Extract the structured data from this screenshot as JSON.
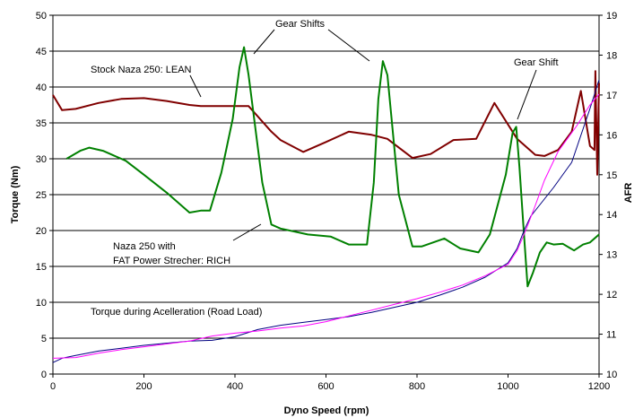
{
  "chart_data": {
    "type": "line",
    "title": "",
    "xlabel": "Dyno Speed (rpm)",
    "ylabel": "Torque (Nm)",
    "y2label": "AFR",
    "xlim": [
      0,
      1200
    ],
    "ylim": [
      0,
      50
    ],
    "y2lim": [
      10,
      19
    ],
    "xticks": [
      0,
      200,
      400,
      600,
      800,
      1000,
      1200
    ],
    "yticks": [
      0,
      5,
      10,
      15,
      20,
      25,
      30,
      35,
      40,
      45,
      50
    ],
    "y2ticks": [
      10,
      11,
      12,
      13,
      14,
      15,
      16,
      17,
      18,
      19
    ],
    "grid": "horizontal",
    "legend": "none",
    "series": [
      {
        "key": "stock_lean",
        "axis": "right",
        "color": "#800000",
        "width": 2,
        "points": [
          [
            0,
            17.0
          ],
          [
            20,
            16.62
          ],
          [
            50,
            16.65
          ],
          [
            100,
            16.8
          ],
          [
            150,
            16.9
          ],
          [
            200,
            16.92
          ],
          [
            250,
            16.85
          ],
          [
            300,
            16.75
          ],
          [
            325,
            16.72
          ],
          [
            375,
            16.72
          ],
          [
            430,
            16.72
          ],
          [
            480,
            16.08
          ],
          [
            500,
            15.87
          ],
          [
            550,
            15.57
          ],
          [
            600,
            15.82
          ],
          [
            650,
            16.08
          ],
          [
            700,
            16.0
          ],
          [
            735,
            15.9
          ],
          [
            790,
            15.42
          ],
          [
            830,
            15.52
          ],
          [
            880,
            15.87
          ],
          [
            930,
            15.9
          ],
          [
            970,
            16.8
          ],
          [
            1020,
            15.9
          ],
          [
            1060,
            15.5
          ],
          [
            1080,
            15.47
          ],
          [
            1110,
            15.62
          ],
          [
            1140,
            16.08
          ],
          [
            1160,
            17.1
          ],
          [
            1180,
            15.72
          ],
          [
            1190,
            15.62
          ],
          [
            1192,
            17.6
          ],
          [
            1196,
            15.0
          ],
          [
            1200,
            17.3
          ]
        ]
      },
      {
        "key": "fat_rich",
        "axis": "right",
        "color": "#008000",
        "width": 2,
        "points": [
          [
            30,
            15.4
          ],
          [
            60,
            15.6
          ],
          [
            80,
            15.68
          ],
          [
            110,
            15.6
          ],
          [
            160,
            15.35
          ],
          [
            200,
            15.0
          ],
          [
            250,
            14.55
          ],
          [
            300,
            14.05
          ],
          [
            325,
            14.1
          ],
          [
            345,
            14.1
          ],
          [
            370,
            15.05
          ],
          [
            395,
            16.4
          ],
          [
            410,
            17.7
          ],
          [
            420,
            18.2
          ],
          [
            430,
            17.5
          ],
          [
            460,
            14.8
          ],
          [
            480,
            13.75
          ],
          [
            500,
            13.65
          ],
          [
            560,
            13.5
          ],
          [
            610,
            13.45
          ],
          [
            650,
            13.25
          ],
          [
            690,
            13.25
          ],
          [
            705,
            14.8
          ],
          [
            715,
            16.9
          ],
          [
            725,
            17.85
          ],
          [
            735,
            17.5
          ],
          [
            760,
            14.5
          ],
          [
            790,
            13.2
          ],
          [
            810,
            13.2
          ],
          [
            860,
            13.4
          ],
          [
            895,
            13.15
          ],
          [
            935,
            13.05
          ],
          [
            960,
            13.5
          ],
          [
            995,
            15.0
          ],
          [
            1010,
            16.05
          ],
          [
            1018,
            16.2
          ],
          [
            1025,
            15.2
          ],
          [
            1035,
            13.5
          ],
          [
            1043,
            12.2
          ],
          [
            1055,
            12.55
          ],
          [
            1070,
            13.05
          ],
          [
            1085,
            13.3
          ],
          [
            1100,
            13.25
          ],
          [
            1120,
            13.27
          ],
          [
            1145,
            13.1
          ],
          [
            1165,
            13.25
          ],
          [
            1180,
            13.3
          ],
          [
            1200,
            13.5
          ]
        ]
      },
      {
        "key": "blue_load",
        "axis": "left",
        "color": "#000080",
        "width": 1,
        "points": [
          [
            0,
            1.6
          ],
          [
            20,
            2.2
          ],
          [
            50,
            2.6
          ],
          [
            100,
            3.2
          ],
          [
            150,
            3.6
          ],
          [
            200,
            4.0
          ],
          [
            300,
            4.6
          ],
          [
            350,
            4.7
          ],
          [
            400,
            5.2
          ],
          [
            450,
            6.2
          ],
          [
            500,
            6.8
          ],
          [
            550,
            7.2
          ],
          [
            600,
            7.6
          ],
          [
            650,
            8.0
          ],
          [
            700,
            8.6
          ],
          [
            750,
            9.3
          ],
          [
            800,
            10.0
          ],
          [
            850,
            11.0
          ],
          [
            900,
            12.1
          ],
          [
            950,
            13.5
          ],
          [
            1000,
            15.5
          ],
          [
            1020,
            17.5
          ],
          [
            1035,
            20.0
          ],
          [
            1050,
            22.0
          ],
          [
            1100,
            26.0
          ],
          [
            1140,
            29.5
          ],
          [
            1180,
            37.0
          ],
          [
            1200,
            41.0
          ]
        ]
      },
      {
        "key": "magenta_load",
        "axis": "left",
        "color": "#ff00ff",
        "width": 1,
        "points": [
          [
            0,
            2.2
          ],
          [
            50,
            2.3
          ],
          [
            100,
            2.9
          ],
          [
            150,
            3.4
          ],
          [
            200,
            3.8
          ],
          [
            300,
            4.6
          ],
          [
            350,
            5.3
          ],
          [
            400,
            5.7
          ],
          [
            450,
            6.0
          ],
          [
            500,
            6.4
          ],
          [
            550,
            6.7
          ],
          [
            600,
            7.3
          ],
          [
            650,
            8.1
          ],
          [
            700,
            8.9
          ],
          [
            750,
            9.7
          ],
          [
            800,
            10.5
          ],
          [
            850,
            11.4
          ],
          [
            900,
            12.4
          ],
          [
            950,
            13.7
          ],
          [
            1000,
            15.3
          ],
          [
            1020,
            17.2
          ],
          [
            1040,
            20.2
          ],
          [
            1060,
            23.5
          ],
          [
            1080,
            27.0
          ],
          [
            1110,
            31.0
          ],
          [
            1150,
            34.5
          ],
          [
            1180,
            37.5
          ],
          [
            1200,
            39.0
          ]
        ]
      }
    ],
    "annotations": {
      "stock": "Stock Naza 250: LEAN",
      "shifts": "Gear Shifts",
      "shift": "Gear Shift",
      "rich_line1": "Naza 250 with",
      "rich_line2": "FAT Power Strecher: RICH",
      "load": "Torque during Acelleration (Road Load)"
    }
  }
}
